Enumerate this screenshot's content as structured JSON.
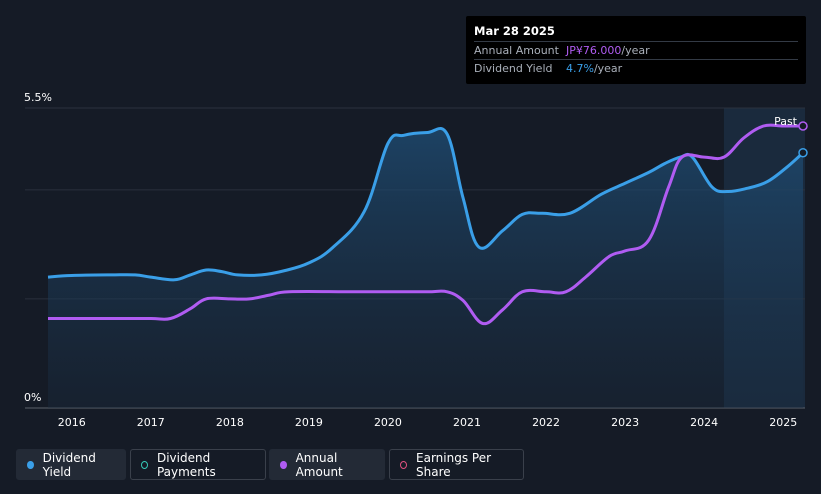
{
  "tooltip": {
    "date": "Mar 28 2025",
    "rows": [
      {
        "label": "Annual Amount",
        "value": "JP¥76.000",
        "unit": "/year"
      },
      {
        "label": "Dividend Yield",
        "value": "4.7%",
        "unit": "/year"
      }
    ]
  },
  "legend": [
    {
      "label": "Dividend Yield",
      "color": "#3a9fe8",
      "filled": true,
      "active": true
    },
    {
      "label": "Dividend Payments",
      "color": "#35c9b7",
      "filled": false,
      "active": false
    },
    {
      "label": "Annual Amount",
      "color": "#b05cf2",
      "filled": true,
      "active": true
    },
    {
      "label": "Earnings Per Share",
      "color": "#e0517f",
      "filled": false,
      "active": false
    }
  ],
  "chart_data": {
    "type": "line",
    "y_tick_labels": [
      "5.5%",
      "0%"
    ],
    "ylim": [
      0,
      5.5
    ],
    "xlim": [
      2015.7,
      2025.25
    ],
    "x_tick_labels": [
      "2016",
      "2017",
      "2018",
      "2019",
      "2020",
      "2021",
      "2022",
      "2023",
      "2024",
      "2025"
    ],
    "past_label": "Past",
    "past_start": 2024.25,
    "grid": true,
    "series": [
      {
        "name": "Dividend Yield",
        "color": "#3a9fe8",
        "points": [
          [
            2015.7,
            2.4
          ],
          [
            2016.0,
            2.43
          ],
          [
            2016.5,
            2.44
          ],
          [
            2016.8,
            2.44
          ],
          [
            2017.0,
            2.4
          ],
          [
            2017.3,
            2.35
          ],
          [
            2017.5,
            2.44
          ],
          [
            2017.7,
            2.53
          ],
          [
            2017.9,
            2.5
          ],
          [
            2018.1,
            2.44
          ],
          [
            2018.4,
            2.44
          ],
          [
            2018.7,
            2.52
          ],
          [
            2019.0,
            2.66
          ],
          [
            2019.3,
            2.94
          ],
          [
            2019.7,
            3.6
          ],
          [
            2020.0,
            4.85
          ],
          [
            2020.2,
            5.0
          ],
          [
            2020.5,
            5.05
          ],
          [
            2020.75,
            5.02
          ],
          [
            2020.95,
            3.85
          ],
          [
            2021.15,
            2.95
          ],
          [
            2021.45,
            3.25
          ],
          [
            2021.7,
            3.55
          ],
          [
            2021.95,
            3.57
          ],
          [
            2022.3,
            3.57
          ],
          [
            2022.7,
            3.92
          ],
          [
            2023.0,
            4.12
          ],
          [
            2023.3,
            4.32
          ],
          [
            2023.5,
            4.48
          ],
          [
            2023.7,
            4.6
          ],
          [
            2023.85,
            4.6
          ],
          [
            2024.1,
            4.05
          ],
          [
            2024.3,
            3.97
          ],
          [
            2024.55,
            4.03
          ],
          [
            2024.8,
            4.15
          ],
          [
            2025.05,
            4.42
          ],
          [
            2025.25,
            4.68
          ]
        ]
      },
      {
        "name": "Annual Amount",
        "color": "#b05cf2",
        "points": [
          [
            2015.7,
            1.64
          ],
          [
            2016.5,
            1.64
          ],
          [
            2017.0,
            1.64
          ],
          [
            2017.25,
            1.64
          ],
          [
            2017.5,
            1.82
          ],
          [
            2017.7,
            2.0
          ],
          [
            2018.0,
            2.0
          ],
          [
            2018.25,
            2.0
          ],
          [
            2018.5,
            2.07
          ],
          [
            2018.75,
            2.13
          ],
          [
            2019.5,
            2.13
          ],
          [
            2020.0,
            2.13
          ],
          [
            2020.5,
            2.13
          ],
          [
            2020.75,
            2.13
          ],
          [
            2020.95,
            1.97
          ],
          [
            2021.2,
            1.55
          ],
          [
            2021.45,
            1.8
          ],
          [
            2021.7,
            2.13
          ],
          [
            2022.0,
            2.13
          ],
          [
            2022.25,
            2.13
          ],
          [
            2022.5,
            2.4
          ],
          [
            2022.8,
            2.78
          ],
          [
            2023.0,
            2.88
          ],
          [
            2023.3,
            3.08
          ],
          [
            2023.55,
            4.05
          ],
          [
            2023.72,
            4.6
          ],
          [
            2024.0,
            4.6
          ],
          [
            2024.25,
            4.6
          ],
          [
            2024.5,
            4.95
          ],
          [
            2024.75,
            5.17
          ],
          [
            2025.0,
            5.17
          ],
          [
            2025.25,
            5.17
          ]
        ]
      }
    ]
  }
}
